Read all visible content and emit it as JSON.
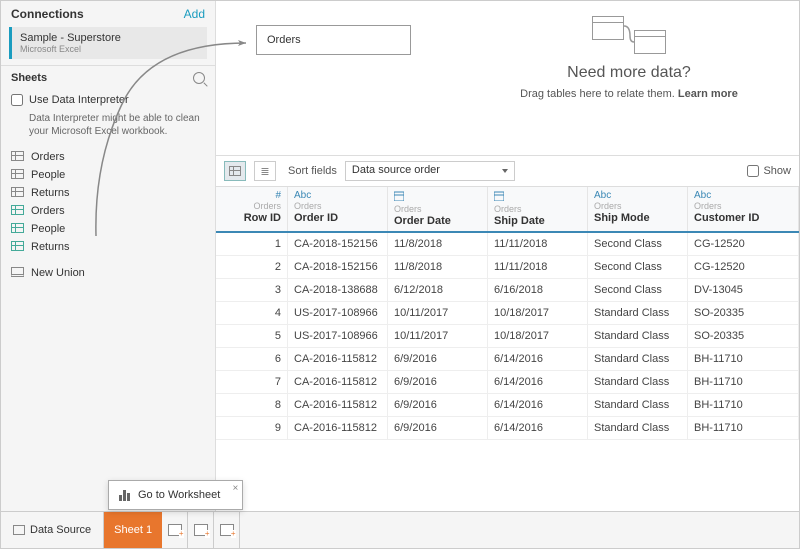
{
  "sidebar": {
    "connections_label": "Connections",
    "add_label": "Add",
    "connection": {
      "name": "Sample - Superstore",
      "type": "Microsoft Excel"
    },
    "sheets_label": "Sheets",
    "interpreter_label": "Use Data Interpreter",
    "interpreter_hint": "Data Interpreter might be able to clean your Microsoft Excel workbook.",
    "sheets": [
      {
        "name": "Orders",
        "kind": "table"
      },
      {
        "name": "People",
        "kind": "table"
      },
      {
        "name": "Returns",
        "kind": "table"
      },
      {
        "name": "Orders",
        "kind": "union"
      },
      {
        "name": "People",
        "kind": "union"
      },
      {
        "name": "Returns",
        "kind": "union"
      }
    ],
    "new_union_label": "New Union"
  },
  "canvas": {
    "table_name": "Orders",
    "hint_title": "Need more data?",
    "hint_sub_prefix": "Drag tables here to relate them. ",
    "hint_sub_link": "Learn more"
  },
  "toolbar": {
    "sort_label": "Sort fields",
    "sort_value": "Data source order",
    "show_label": "Show"
  },
  "columns": [
    {
      "type": "#",
      "src": "Orders",
      "name": "Row ID",
      "cls": "col-rowid",
      "align": "right"
    },
    {
      "type": "Abc",
      "src": "Orders",
      "name": "Order ID",
      "cls": "col-orderid",
      "align": "left"
    },
    {
      "type": "📅",
      "src": "Orders",
      "name": "Order Date",
      "cls": "col-orderdate",
      "align": "left"
    },
    {
      "type": "📅",
      "src": "Orders",
      "name": "Ship Date",
      "cls": "col-shipdate",
      "align": "left"
    },
    {
      "type": "Abc",
      "src": "Orders",
      "name": "Ship Mode",
      "cls": "col-shipmode",
      "align": "left"
    },
    {
      "type": "Abc",
      "src": "Orders",
      "name": "Customer ID",
      "cls": "col-custid",
      "align": "left"
    }
  ],
  "rows": [
    [
      "1",
      "CA-2018-152156",
      "11/8/2018",
      "11/11/2018",
      "Second Class",
      "CG-12520"
    ],
    [
      "2",
      "CA-2018-152156",
      "11/8/2018",
      "11/11/2018",
      "Second Class",
      "CG-12520"
    ],
    [
      "3",
      "CA-2018-138688",
      "6/12/2018",
      "6/16/2018",
      "Second Class",
      "DV-13045"
    ],
    [
      "4",
      "US-2017-108966",
      "10/11/2017",
      "10/18/2017",
      "Standard Class",
      "SO-20335"
    ],
    [
      "5",
      "US-2017-108966",
      "10/11/2017",
      "10/18/2017",
      "Standard Class",
      "SO-20335"
    ],
    [
      "6",
      "CA-2016-115812",
      "6/9/2016",
      "6/14/2016",
      "Standard Class",
      "BH-11710"
    ],
    [
      "7",
      "CA-2016-115812",
      "6/9/2016",
      "6/14/2016",
      "Standard Class",
      "BH-11710"
    ],
    [
      "8",
      "CA-2016-115812",
      "6/9/2016",
      "6/14/2016",
      "Standard Class",
      "BH-11710"
    ],
    [
      "9",
      "CA-2016-115812",
      "6/9/2016",
      "6/14/2016",
      "Standard Class",
      "BH-11710"
    ]
  ],
  "bottom": {
    "data_source_label": "Data Source",
    "sheet_tab_label": "Sheet 1",
    "tooltip_label": "Go to Worksheet"
  },
  "colors": {
    "accent": "#1a9cbf",
    "header_border": "#3b88b5",
    "sheet_tab_bg": "#e8762d"
  }
}
